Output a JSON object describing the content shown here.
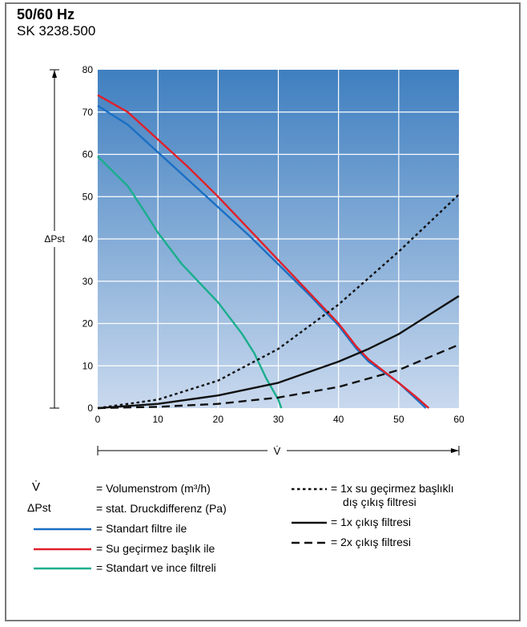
{
  "header": {
    "title": "50/60 Hz",
    "subtitle": "SK 3238.500"
  },
  "legend": {
    "v_symbol": "V̇",
    "v_desc": "= Volumenstrom (m³/h)",
    "dp_symbol": "ΔPst",
    "dp_desc": "= stat. Druckdifferenz (Pa)",
    "s1": "= Standart filtre ile",
    "s2": "= Su geçirmez başlık ile",
    "s3": "= Standart ve ince filtreli",
    "s4_line1": "= 1x su geçirmez başlıklı",
    "s4_line2": "dış çıkış filtresi",
    "s5": "= 1x çıkış filtresi",
    "s6": "= 2x çıkış filtresi"
  },
  "colors": {
    "blue": "#1a6fc4",
    "red": "#e0202a",
    "teal": "#1aae8c",
    "black": "#111111",
    "bg_top": "#3f7fc0",
    "bg_bottom": "#c9d9ee"
  },
  "chart_data": {
    "type": "line",
    "xlabel": "V̇",
    "ylabel": "ΔPst",
    "xlim": [
      0,
      60
    ],
    "ylim": [
      0,
      80
    ],
    "x_ticks": [
      0,
      10,
      20,
      30,
      40,
      50,
      60
    ],
    "y_ticks": [
      0,
      10,
      20,
      30,
      40,
      50,
      60,
      70,
      80
    ],
    "grid": true,
    "series": [
      {
        "name": "Standart filtre ile",
        "color": "#1a6fc4",
        "style": "solid",
        "x": [
          0,
          5,
          10,
          15,
          20,
          25,
          30,
          35,
          40,
          43,
          45,
          50,
          53,
          54.5
        ],
        "y": [
          71.5,
          67,
          60.5,
          54,
          47.5,
          41,
          34,
          27,
          19.5,
          14,
          11,
          6,
          2,
          0
        ]
      },
      {
        "name": "Su geçirmez başlık ile",
        "color": "#e0202a",
        "style": "solid",
        "x": [
          0,
          5,
          10,
          15,
          20,
          25,
          30,
          35,
          40,
          43,
          45,
          50,
          53,
          55
        ],
        "y": [
          74,
          70,
          63.5,
          57,
          50,
          42.5,
          35,
          27.5,
          20,
          14.5,
          11.5,
          6,
          2.5,
          0
        ]
      },
      {
        "name": "Standart ve ince filtreli",
        "color": "#1aae8c",
        "style": "solid",
        "x": [
          0,
          5,
          8,
          10,
          14,
          20,
          24,
          26,
          28,
          30,
          30.5
        ],
        "y": [
          59.5,
          52.5,
          46,
          41.5,
          34,
          25,
          17.5,
          13,
          7,
          2,
          0
        ]
      },
      {
        "name": "1x su geçirmez başlıklı dış çıkış filtresi",
        "color": "#111111",
        "style": "dotted",
        "x": [
          0,
          10,
          20,
          30,
          40,
          50,
          60
        ],
        "y": [
          0,
          2,
          6.5,
          14,
          24.5,
          37,
          50.5
        ]
      },
      {
        "name": "1x çıkış filtresi",
        "color": "#111111",
        "style": "solid",
        "x": [
          0,
          10,
          20,
          30,
          40,
          45,
          50,
          55,
          60
        ],
        "y": [
          0,
          1,
          3,
          6,
          11,
          14,
          17.5,
          22,
          26.5
        ]
      },
      {
        "name": "2x çıkış filtresi",
        "color": "#111111",
        "style": "dashed",
        "x": [
          0,
          10,
          20,
          30,
          40,
          50,
          60
        ],
        "y": [
          0,
          0.3,
          1,
          2.5,
          5,
          9,
          15
        ]
      }
    ]
  }
}
